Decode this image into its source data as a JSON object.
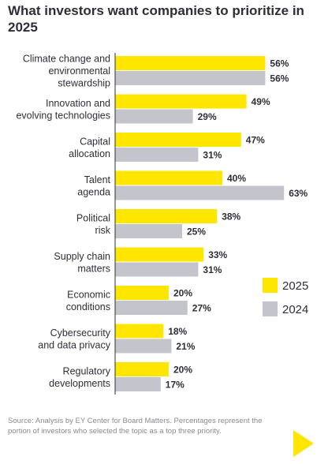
{
  "chart_data": {
    "type": "bar",
    "orientation": "horizontal",
    "title": "What investors want companies to prioritize in 2025",
    "categories": [
      [
        "Climate change and",
        "environmental",
        "stewardship"
      ],
      [
        "Innovation and",
        "evolving technologies"
      ],
      [
        "Capital",
        "allocation"
      ],
      [
        "Talent",
        "agenda"
      ],
      [
        "Political",
        "risk"
      ],
      [
        "Supply chain",
        "matters"
      ],
      [
        "Economic",
        "conditions"
      ],
      [
        "Cybersecurity",
        "and data privacy"
      ],
      [
        "Regulatory",
        "developments"
      ]
    ],
    "series": [
      {
        "name": "2025",
        "color": "#ffe600",
        "values": [
          56,
          49,
          47,
          40,
          38,
          33,
          20,
          18,
          20
        ],
        "labels": [
          "56%",
          "49%",
          "47%",
          "40%",
          "38%",
          "33%",
          "20%",
          "18%",
          "20%"
        ]
      },
      {
        "name": "2024",
        "color": "#c4c4cd",
        "values": [
          56,
          29,
          31,
          63,
          25,
          31,
          27,
          21,
          17
        ],
        "labels": [
          "56%",
          "29%",
          "31%",
          "63%",
          "25%",
          "31%",
          "27%",
          "21%",
          "17%"
        ]
      }
    ],
    "xlim": [
      0,
      100
    ],
    "legend": "right",
    "grid": false
  },
  "source_text": "Source: Analysis by EY Center for Board Matters. Percentages represent the portion of investors who selected the topic as a top three priority.",
  "colors": {
    "accent": "#ffe600",
    "secondary": "#c4c4cd",
    "text": "#2e2e38",
    "muted": "#8a8a94"
  },
  "icons": {
    "corner": "play-arrow-icon"
  }
}
